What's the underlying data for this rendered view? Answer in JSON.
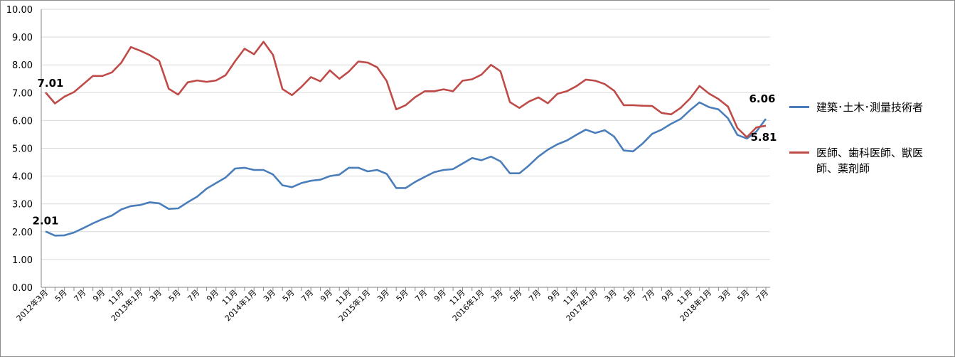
{
  "chart_data": {
    "type": "line",
    "ylim": [
      0,
      10
    ],
    "yticks": [
      "0.00",
      "1.00",
      "2.00",
      "3.00",
      "4.00",
      "5.00",
      "6.00",
      "7.00",
      "8.00",
      "9.00",
      "10.00"
    ],
    "grid": true,
    "legend_position": "right",
    "x_tick_labels": [
      "2012年3月",
      "5月",
      "7月",
      "9月",
      "11月",
      "2013年1月",
      "3月",
      "5月",
      "7月",
      "9月",
      "11月",
      "2014年1月",
      "3月",
      "5月",
      "7月",
      "9月",
      "11月",
      "2015年1月",
      "3月",
      "5月",
      "7月",
      "9月",
      "11月",
      "2016年1月",
      "3月",
      "5月",
      "7月",
      "9月",
      "11月",
      "2017年1月",
      "3月",
      "5月",
      "7月",
      "9月",
      "11月",
      "2018年1月",
      "3月",
      "5月",
      "7月"
    ],
    "series": [
      {
        "name": "建築･土木･測量技術者",
        "color": "#4a7ebb",
        "values": [
          2.01,
          1.86,
          1.87,
          1.97,
          2.13,
          2.3,
          2.45,
          2.58,
          2.8,
          2.92,
          2.96,
          3.06,
          3.02,
          2.82,
          2.84,
          3.06,
          3.26,
          3.55,
          3.75,
          3.95,
          4.27,
          4.3,
          4.22,
          4.22,
          4.06,
          3.67,
          3.6,
          3.75,
          3.83,
          3.87,
          4.0,
          4.05,
          4.3,
          4.3,
          4.17,
          4.22,
          4.08,
          3.57,
          3.57,
          3.79,
          3.97,
          4.14,
          4.22,
          4.25,
          4.45,
          4.65,
          4.57,
          4.7,
          4.53,
          4.1,
          4.1,
          4.38,
          4.7,
          4.95,
          5.14,
          5.28,
          5.48,
          5.67,
          5.55,
          5.65,
          5.42,
          4.92,
          4.89,
          5.17,
          5.52,
          5.67,
          5.88,
          6.05,
          6.37,
          6.65,
          6.48,
          6.4,
          6.08,
          5.48,
          5.35,
          5.6,
          6.06
        ]
      },
      {
        "name": "医師、歯科医師、獣医師、薬剤師",
        "color": "#be4b48",
        "values": [
          7.01,
          6.61,
          6.86,
          7.02,
          7.31,
          7.6,
          7.6,
          7.73,
          8.08,
          8.64,
          8.51,
          8.35,
          8.14,
          7.14,
          6.93,
          7.37,
          7.44,
          7.39,
          7.44,
          7.63,
          8.13,
          8.58,
          8.38,
          8.83,
          8.36,
          7.13,
          6.91,
          7.21,
          7.56,
          7.41,
          7.8,
          7.5,
          7.76,
          8.12,
          8.08,
          7.91,
          7.42,
          6.4,
          6.55,
          6.84,
          7.05,
          7.05,
          7.12,
          7.05,
          7.43,
          7.48,
          7.65,
          8.0,
          7.77,
          6.66,
          6.45,
          6.68,
          6.83,
          6.62,
          6.96,
          7.05,
          7.23,
          7.47,
          7.43,
          7.31,
          7.07,
          6.55,
          6.55,
          6.53,
          6.52,
          6.27,
          6.22,
          6.45,
          6.79,
          7.24,
          6.97,
          6.77,
          6.5,
          5.73,
          5.4,
          5.75,
          5.81
        ]
      }
    ],
    "annotations": [
      {
        "series": 0,
        "index": 0,
        "text": "2.01"
      },
      {
        "series": 1,
        "index": 0,
        "text": "7.01"
      },
      {
        "series": 0,
        "index": 76,
        "text": "6.06"
      },
      {
        "series": 1,
        "index": 76,
        "text": "5.81"
      }
    ]
  },
  "legend": {
    "items": [
      {
        "label_line1": "建築･土木･測量技術者",
        "label_line2": ""
      },
      {
        "label_line1": "医師、歯科医師、獣医",
        "label_line2": "師、薬剤師"
      }
    ]
  }
}
